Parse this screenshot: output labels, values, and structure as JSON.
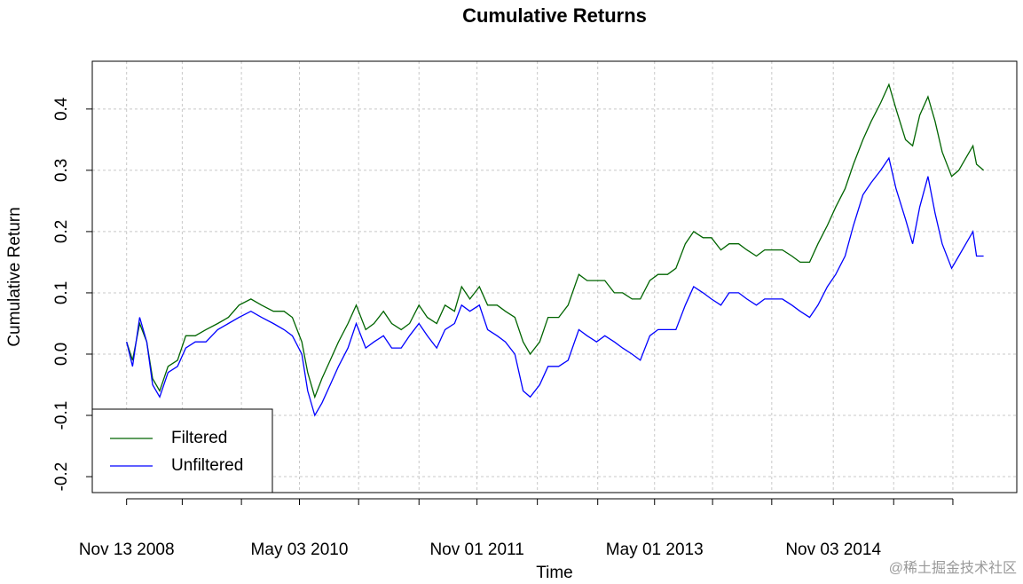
{
  "chart_data": {
    "type": "line",
    "title": "Cumulative Returns",
    "xlabel": "Time",
    "ylabel": "Cumulative Return",
    "watermark": "@稀土掘金技术社区",
    "x": [
      2008.87,
      2008.92,
      2008.98,
      2009.04,
      2009.09,
      2009.15,
      2009.22,
      2009.3,
      2009.37,
      2009.45,
      2009.54,
      2009.64,
      2009.73,
      2009.82,
      2009.92,
      2010.01,
      2010.11,
      2010.2,
      2010.27,
      2010.35,
      2010.4,
      2010.46,
      2010.52,
      2010.59,
      2010.66,
      2010.74,
      2010.81,
      2010.89,
      2010.96,
      2011.04,
      2011.11,
      2011.19,
      2011.26,
      2011.34,
      2011.41,
      2011.49,
      2011.56,
      2011.64,
      2011.7,
      2011.77,
      2011.85,
      2011.92,
      2012.0,
      2012.07,
      2012.15,
      2012.22,
      2012.28,
      2012.36,
      2012.43,
      2012.52,
      2012.6,
      2012.69,
      2012.76,
      2012.84,
      2012.91,
      2012.99,
      2013.06,
      2013.14,
      2013.21,
      2013.29,
      2013.36,
      2013.44,
      2013.51,
      2013.59,
      2013.66,
      2013.74,
      2013.81,
      2013.89,
      2013.96,
      2014.04,
      2014.11,
      2014.19,
      2014.26,
      2014.34,
      2014.41,
      2014.49,
      2014.56,
      2014.64,
      2014.71,
      2014.79,
      2014.86,
      2014.94,
      2015.01,
      2015.09,
      2015.16,
      2015.24,
      2015.31,
      2015.37,
      2015.45,
      2015.51,
      2015.57,
      2015.64,
      2015.7,
      2015.76,
      2015.84,
      2015.9,
      2015.96,
      2016.02,
      2016.05,
      2016.11
    ],
    "series": [
      {
        "name": "Filtered",
        "color": "#006400",
        "values": [
          0.02,
          -0.01,
          0.05,
          0.02,
          -0.04,
          -0.06,
          -0.02,
          -0.01,
          0.03,
          0.03,
          0.04,
          0.05,
          0.06,
          0.08,
          0.09,
          0.08,
          0.07,
          0.07,
          0.06,
          0.02,
          -0.03,
          -0.07,
          -0.04,
          -0.01,
          0.02,
          0.05,
          0.08,
          0.04,
          0.05,
          0.07,
          0.05,
          0.04,
          0.05,
          0.08,
          0.06,
          0.05,
          0.08,
          0.07,
          0.11,
          0.09,
          0.11,
          0.08,
          0.08,
          0.07,
          0.06,
          0.02,
          0.0,
          0.02,
          0.06,
          0.06,
          0.08,
          0.13,
          0.12,
          0.12,
          0.12,
          0.1,
          0.1,
          0.09,
          0.09,
          0.12,
          0.13,
          0.13,
          0.14,
          0.18,
          0.2,
          0.19,
          0.19,
          0.17,
          0.18,
          0.18,
          0.17,
          0.16,
          0.17,
          0.17,
          0.17,
          0.16,
          0.15,
          0.15,
          0.18,
          0.21,
          0.24,
          0.27,
          0.31,
          0.35,
          0.38,
          0.41,
          0.44,
          0.4,
          0.35,
          0.34,
          0.39,
          0.42,
          0.38,
          0.33,
          0.29,
          0.3,
          0.32,
          0.34,
          0.31,
          0.3
        ]
      },
      {
        "name": "Unfiltered",
        "color": "#0000ff",
        "values": [
          0.02,
          -0.02,
          0.06,
          0.02,
          -0.05,
          -0.07,
          -0.03,
          -0.02,
          0.01,
          0.02,
          0.02,
          0.04,
          0.05,
          0.06,
          0.07,
          0.06,
          0.05,
          0.04,
          0.03,
          0.0,
          -0.06,
          -0.1,
          -0.08,
          -0.05,
          -0.02,
          0.01,
          0.05,
          0.01,
          0.02,
          0.03,
          0.01,
          0.01,
          0.03,
          0.05,
          0.03,
          0.01,
          0.04,
          0.05,
          0.08,
          0.07,
          0.08,
          0.04,
          0.03,
          0.02,
          0.0,
          -0.06,
          -0.07,
          -0.05,
          -0.02,
          -0.02,
          -0.01,
          0.04,
          0.03,
          0.02,
          0.03,
          0.02,
          0.01,
          0.0,
          -0.01,
          0.03,
          0.04,
          0.04,
          0.04,
          0.08,
          0.11,
          0.1,
          0.09,
          0.08,
          0.1,
          0.1,
          0.09,
          0.08,
          0.09,
          0.09,
          0.09,
          0.08,
          0.07,
          0.06,
          0.08,
          0.11,
          0.13,
          0.16,
          0.21,
          0.26,
          0.28,
          0.3,
          0.32,
          0.27,
          0.22,
          0.18,
          0.24,
          0.29,
          0.23,
          0.18,
          0.14,
          0.16,
          0.18,
          0.2,
          0.16,
          0.16
        ]
      }
    ],
    "xlim": [
      2008.58,
      2016.39
    ],
    "ylim": [
      -0.226,
      0.478
    ],
    "xticks": [
      {
        "value": 2008.87,
        "label": "Nov 13 2008"
      },
      {
        "value": 2010.33,
        "label": "May 03 2010"
      },
      {
        "value": 2011.83,
        "label": "Nov 01 2011"
      },
      {
        "value": 2013.33,
        "label": "May 01 2013"
      },
      {
        "value": 2014.84,
        "label": "Nov 03 2014"
      }
    ],
    "xminorticks": [
      2009.34,
      2009.84,
      2010.83,
      2011.34,
      2012.34,
      2012.85,
      2013.82,
      2014.32,
      2015.35,
      2015.85
    ],
    "yticks": [
      -0.2,
      -0.1,
      {
        "value": 0,
        "label": "0.0"
      },
      0.1,
      0.2,
      0.3,
      0.4
    ],
    "grid": true,
    "legend": "bottomleft"
  }
}
